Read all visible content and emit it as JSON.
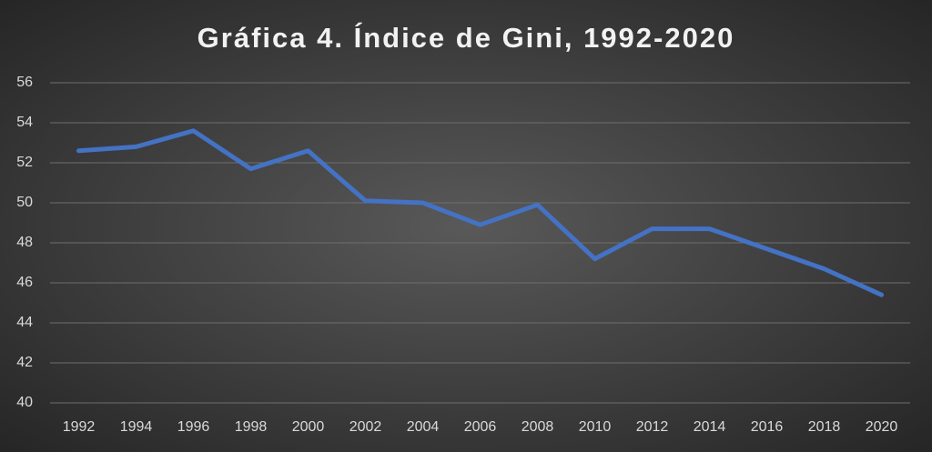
{
  "chart_data": {
    "type": "line",
    "title": "Gráfica 4. Índice de Gini, 1992-2020",
    "categories": [
      "1992",
      "1994",
      "1996",
      "1998",
      "2000",
      "2002",
      "2004",
      "2006",
      "2008",
      "2010",
      "2012",
      "2014",
      "2016",
      "2018",
      "2020"
    ],
    "values": [
      52.6,
      52.8,
      53.6,
      51.7,
      52.6,
      50.1,
      50.0,
      48.9,
      49.9,
      47.2,
      48.7,
      48.7,
      47.7,
      46.7,
      45.4
    ],
    "color": "#4472c4",
    "ylim": [
      40,
      56
    ],
    "yticks": [
      40,
      42,
      44,
      46,
      48,
      50,
      52,
      54,
      56
    ],
    "grid": true
  }
}
